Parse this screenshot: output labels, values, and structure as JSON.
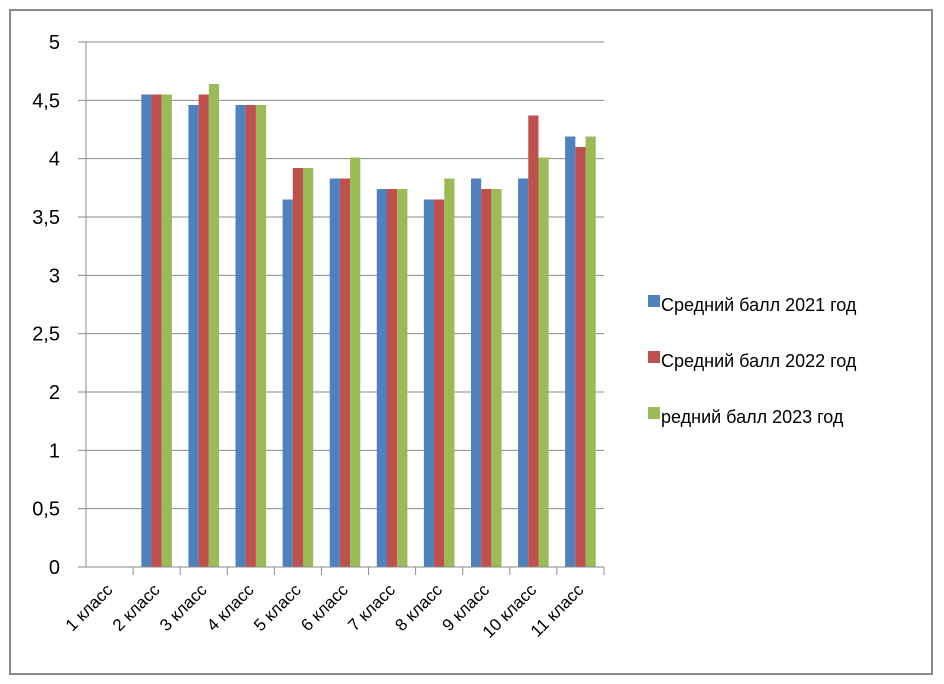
{
  "chart_data": {
    "type": "bar",
    "categories": [
      "1 класс",
      "2 класс",
      "3 класс",
      "4 класс",
      "5 класс",
      "6 класс",
      "7 класс",
      "8 класс",
      "9 класс",
      "10 класс",
      "11 класс"
    ],
    "series": [
      {
        "name": "Средний балл 2021 год",
        "color": "#4f81bd",
        "values": [
          0,
          4.5,
          4.4,
          4.4,
          3.5,
          3.7,
          3.6,
          3.5,
          3.7,
          3.7,
          4.1
        ]
      },
      {
        "name": "Средний балл 2022 год",
        "color": "#c0504d",
        "values": [
          0,
          4.5,
          4.5,
          4.4,
          3.8,
          3.7,
          3.6,
          3.5,
          3.6,
          4.3,
          4.0
        ]
      },
      {
        "name": "редний балл 2023 год",
        "color": "#9bbb59",
        "values": [
          0,
          4.5,
          4.6,
          4.4,
          3.8,
          3.9,
          3.6,
          3.7,
          3.6,
          3.9,
          4.1
        ]
      }
    ],
    "yticks": [
      "0",
      "0,5",
      "1",
      "2",
      "2,5",
      "3",
      "3,5",
      "4",
      "4,5",
      "5"
    ],
    "ylim": [
      0,
      5
    ],
    "grid": true,
    "legend_position": "right",
    "title": "",
    "xlabel": "",
    "ylabel": ""
  }
}
